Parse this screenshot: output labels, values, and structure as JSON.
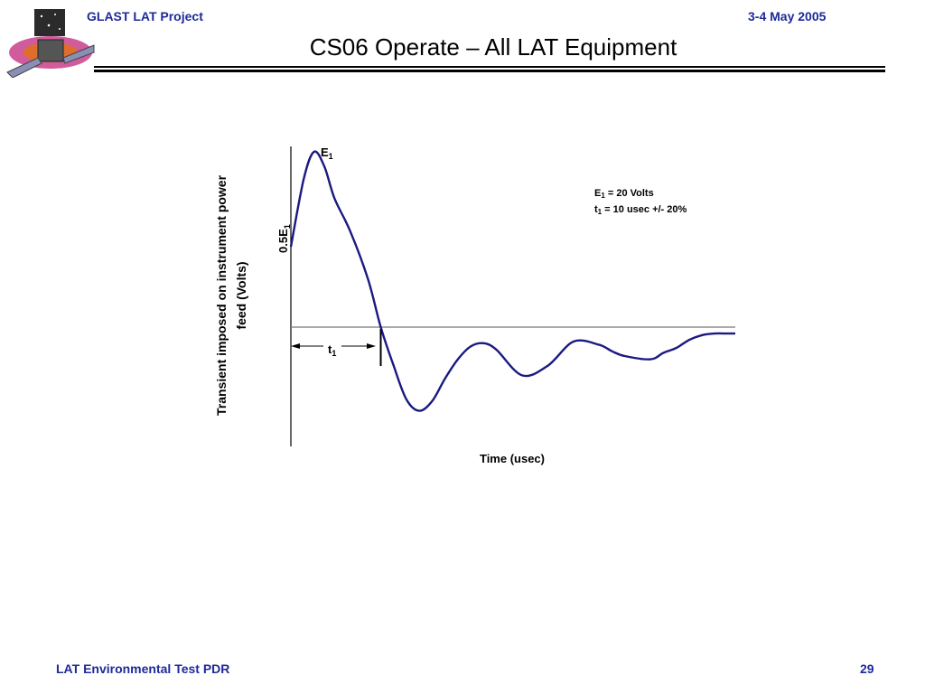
{
  "header": {
    "project": "GLAST LAT Project",
    "date": "3-4 May 2005"
  },
  "title": "CS06 Operate – All LAT Equipment",
  "footer": {
    "left": "LAT Environmental Test PDR",
    "page": "29"
  },
  "colors": {
    "accent": "#1e2a99",
    "curve": "#1a1a80",
    "rule": "#000000"
  },
  "logo": {
    "icon": "glast-satellite-logo"
  },
  "chart_data": {
    "type": "line",
    "title": "",
    "xlabel": "Time (usec)",
    "ylabel_line1": "Transient imposed on instrument power",
    "ylabel_line2": "feed (Volts)",
    "ylim": [
      -0.7,
      1.2
    ],
    "xlim": [
      0,
      17.3
    ],
    "grid": false,
    "legend": "none",
    "series": [
      {
        "x": [
          0,
          0.5,
          0.9,
          1.3,
          1.7,
          2.3,
          3,
          3.5,
          4,
          4.5,
          5,
          5.5,
          6,
          6.5,
          7,
          7.5,
          8,
          9,
          10,
          11,
          12,
          12.5,
          13,
          14,
          14.5,
          15,
          15.5,
          16,
          16.5,
          17,
          17.3
        ],
        "y": [
          0.5,
          0.92,
          1.09,
          1.0,
          0.8,
          0.6,
          0.3,
          0.0,
          -0.24,
          -0.45,
          -0.52,
          -0.46,
          -0.32,
          -0.2,
          -0.12,
          -0.1,
          -0.14,
          -0.3,
          -0.24,
          -0.09,
          -0.11,
          -0.15,
          -0.18,
          -0.2,
          -0.16,
          -0.13,
          -0.08,
          -0.05,
          -0.04,
          -0.04,
          -0.04
        ]
      }
    ],
    "annotations": {
      "peak_label": "E",
      "peak_sub": "1",
      "half_label": "0.5E",
      "half_sub": "1",
      "t1_label": "t",
      "t1_sub": "1",
      "t1_value": 3.5,
      "spec_line1_a": "E",
      "spec_line1_sub": "1",
      "spec_line1_b": " = 20 Volts",
      "spec_line2_a": "t",
      "spec_line2_sub": "1",
      "spec_line2_b": " = 10 usec +/- 20%"
    }
  }
}
